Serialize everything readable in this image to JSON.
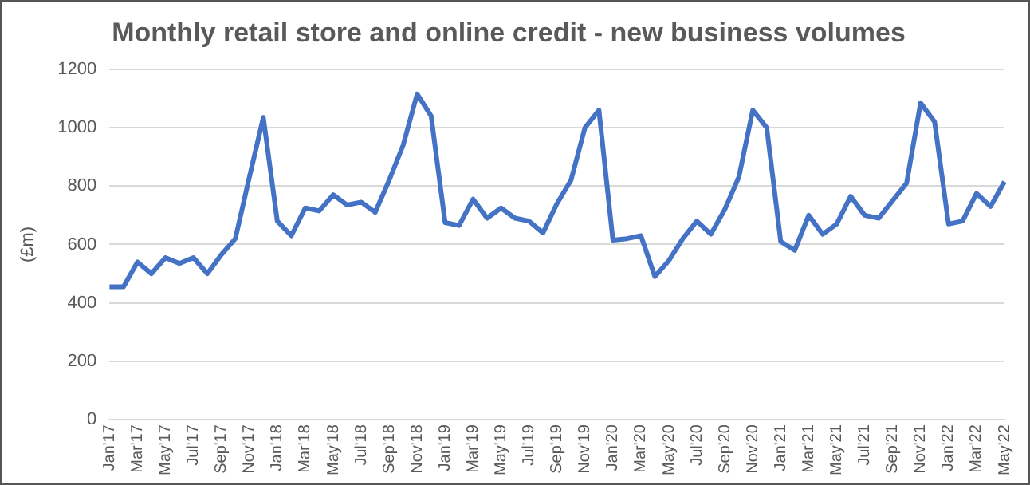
{
  "chart_data": {
    "type": "line",
    "title": "Monthly retail store and online credit - new business volumes",
    "ylabel": "(£m)",
    "categories": [
      "Jan'17",
      null,
      "Mar'17",
      null,
      "May'17",
      null,
      "Jul'17",
      null,
      "Sep'17",
      null,
      "Nov'17",
      null,
      "Jan'18",
      null,
      "Mar'18",
      null,
      "May'18",
      null,
      "Jul'18",
      null,
      "Sep'18",
      null,
      "Nov'18",
      null,
      "Jan'19",
      null,
      "Mar'19",
      null,
      "May'19",
      null,
      "Jul'19",
      null,
      "Sep'19",
      null,
      "Nov'19",
      null,
      "Jan'20",
      null,
      "Mar'20",
      null,
      "May'20",
      null,
      "Jul'20",
      null,
      "Sep'20",
      null,
      "Nov'20",
      null,
      "Jan'21",
      null,
      "Mar'21",
      null,
      "May'21",
      null,
      "Jul'21",
      null,
      "Sep'21",
      null,
      "Nov'21",
      null,
      "Jan'22",
      null,
      "Mar'22",
      null,
      "May'22"
    ],
    "series": [
      {
        "color": "#4472c4",
        "values": [
          455,
          455,
          540,
          500,
          555,
          535,
          555,
          500,
          565,
          620,
          830,
          1035,
          680,
          630,
          725,
          715,
          770,
          735,
          745,
          710,
          820,
          940,
          1115,
          1040,
          675,
          665,
          755,
          690,
          725,
          690,
          680,
          640,
          740,
          820,
          1000,
          1060,
          615,
          620,
          630,
          490,
          545,
          620,
          680,
          635,
          720,
          830,
          1060,
          1000,
          610,
          580,
          700,
          635,
          670,
          765,
          700,
          690,
          750,
          810,
          1085,
          1020,
          670,
          680,
          775,
          730,
          815
        ]
      }
    ],
    "ylim": [
      0,
      1200
    ],
    "yticks": [
      0,
      200,
      400,
      600,
      800,
      1000,
      1200
    ],
    "grid": "y",
    "legend": false,
    "marker": "none",
    "line_style": "solid"
  }
}
